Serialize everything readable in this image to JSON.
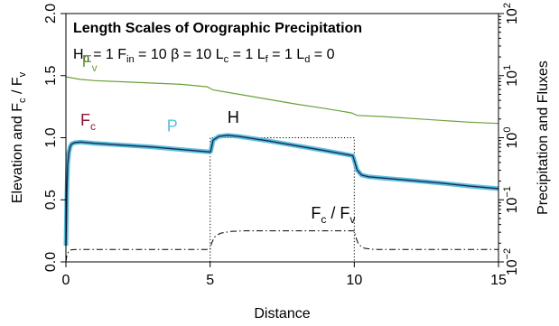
{
  "chart_data": {
    "type": "line",
    "title": "Length Scales of Orographic Precipitation",
    "params": [
      {
        "sym": "H",
        "sub": "0",
        "val": "= 1"
      },
      {
        "sym": "F",
        "sub": "in",
        "val": "= 10"
      },
      {
        "sym": "β",
        "sub": "",
        "val": "= 10"
      },
      {
        "sym": "L",
        "sub": "c",
        "val": "= 1"
      },
      {
        "sym": "L",
        "sub": "f",
        "val": "= 1"
      },
      {
        "sym": "L",
        "sub": "d",
        "val": "= 0"
      }
    ],
    "xlabel": "Distance",
    "ylabel_left": {
      "main": "Elevation and F",
      "sub": "c",
      "tail": " / F",
      "sub2": "v"
    },
    "ylabel_right": "Precipitation and Fluxes",
    "xlim": [
      0,
      15
    ],
    "ylim_left": [
      0,
      2
    ],
    "ylim_right_log10": [
      -2,
      2
    ],
    "x_ticks": [
      "0",
      "5",
      "10",
      "15"
    ],
    "y_left_ticks": [
      "0.0",
      "0.5",
      "1.0",
      "1.5",
      "2.0"
    ],
    "y_right_ticks": [
      {
        "base": "10",
        "exp": "−2"
      },
      {
        "base": "10",
        "exp": "−1"
      },
      {
        "base": "10",
        "exp": "0"
      },
      {
        "base": "10",
        "exp": "1"
      },
      {
        "base": "10",
        "exp": "2"
      }
    ],
    "colors": {
      "Fv": "#6aa03a",
      "Fc": "#8b1535",
      "P": "#5bbfda",
      "H": "#000000",
      "ratio": "#000000"
    },
    "series": [
      {
        "name": "Fv",
        "label": {
          "main": "F",
          "sub": "v"
        },
        "axis": "left",
        "style": "solid",
        "x": [
          0,
          0.5,
          1,
          2,
          3,
          4,
          4.9,
          5.1,
          6,
          7,
          8,
          9,
          9.9,
          10.1,
          11,
          12,
          13,
          14,
          15
        ],
        "y": [
          1.49,
          1.47,
          1.46,
          1.45,
          1.44,
          1.43,
          1.41,
          1.385,
          1.35,
          1.31,
          1.27,
          1.235,
          1.2,
          1.18,
          1.17,
          1.155,
          1.14,
          1.125,
          1.115
        ]
      },
      {
        "name": "Fc",
        "label": {
          "main": "F",
          "sub": "c"
        },
        "axis": "left",
        "style": "solid",
        "x": [
          0,
          0.03,
          0.06,
          0.1,
          0.15,
          0.2,
          0.3,
          0.5,
          1,
          2,
          3,
          4,
          5,
          5.02,
          5.1,
          5.3,
          5.6,
          6,
          7,
          8,
          9,
          9.95,
          10.02,
          10.1,
          10.25,
          10.5,
          11,
          12,
          13,
          14,
          15
        ],
        "y": [
          0.13,
          0.55,
          0.78,
          0.88,
          0.93,
          0.95,
          0.96,
          0.965,
          0.955,
          0.94,
          0.925,
          0.905,
          0.885,
          0.89,
          0.98,
          1.01,
          1.02,
          1.01,
          0.975,
          0.935,
          0.895,
          0.855,
          0.8,
          0.74,
          0.7,
          0.685,
          0.675,
          0.655,
          0.635,
          0.61,
          0.59
        ]
      },
      {
        "name": "P",
        "label": {
          "main": "P",
          "sub": ""
        },
        "axis": "left",
        "style": "solid",
        "x": [
          0,
          0.03,
          0.06,
          0.1,
          0.15,
          0.2,
          0.3,
          0.5,
          1,
          2,
          3,
          4,
          5,
          5.02,
          5.1,
          5.3,
          5.6,
          6,
          7,
          8,
          9,
          9.95,
          10.02,
          10.1,
          10.25,
          10.5,
          11,
          12,
          13,
          14,
          15
        ],
        "y": [
          0.13,
          0.55,
          0.78,
          0.88,
          0.93,
          0.95,
          0.96,
          0.965,
          0.955,
          0.94,
          0.925,
          0.905,
          0.885,
          0.89,
          0.98,
          1.01,
          1.02,
          1.01,
          0.975,
          0.935,
          0.895,
          0.855,
          0.8,
          0.74,
          0.7,
          0.685,
          0.675,
          0.655,
          0.635,
          0.61,
          0.59
        ]
      },
      {
        "name": "H",
        "label": {
          "main": "H",
          "sub": ""
        },
        "axis": "left",
        "style": "dotted",
        "x": [
          0,
          5,
          5,
          10,
          10,
          15
        ],
        "y": [
          0,
          0,
          1,
          1,
          0,
          0
        ]
      },
      {
        "name": "Fc/Fv",
        "label": {
          "main": "F",
          "sub": "c",
          "tail": " / F",
          "sub2": "v"
        },
        "axis": "left",
        "style": "dashdot",
        "x": [
          0,
          0.03,
          0.08,
          0.15,
          0.3,
          0.6,
          5,
          5.05,
          5.15,
          5.35,
          5.7,
          6.2,
          10,
          10.05,
          10.15,
          10.35,
          10.7,
          15
        ],
        "y": [
          0.0,
          0.05,
          0.08,
          0.095,
          0.1,
          0.1,
          0.1,
          0.15,
          0.2,
          0.23,
          0.245,
          0.25,
          0.25,
          0.2,
          0.14,
          0.11,
          0.1,
          0.1
        ]
      }
    ],
    "annotations": [
      {
        "series": "Fv",
        "at": [
          0.55,
          1.57
        ]
      },
      {
        "series": "Fc",
        "at": [
          0.5,
          1.1
        ]
      },
      {
        "series": "P",
        "at": [
          3.5,
          1.05
        ]
      },
      {
        "series": "H",
        "at": [
          5.6,
          1.12
        ]
      },
      {
        "series": "Fc/Fv",
        "at": [
          8.5,
          0.35
        ]
      }
    ]
  }
}
